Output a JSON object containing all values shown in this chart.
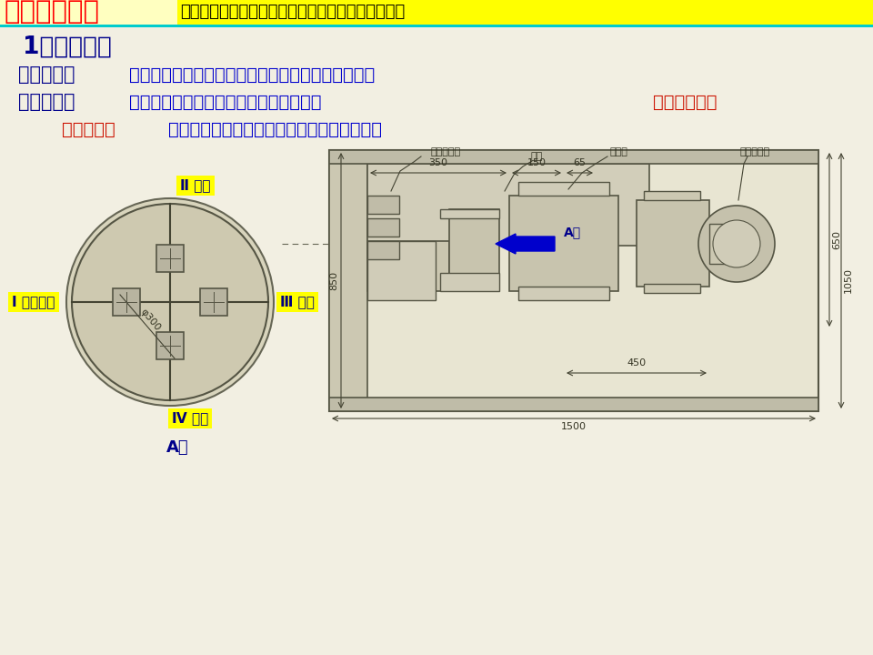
{
  "bg_color": "#f2efe2",
  "header_bg_left": "#ffffc0",
  "header_text_red": "#ff0000",
  "title_red": "二、设计题目",
  "title_colon": "：",
  "title_yellow_text": "专用机床的刀具进给机构和工作台转位机构的设计",
  "section_title": "1、题目简介",
  "line1_bold": "机床构成：",
  "line1_content": "主轴箱进给机构、工作台转位与定位、主传动系统。",
  "line2_bold": "工作原理：",
  "line2_content_blue": "主轴箱往返一次，在四个工位上同时进行",
  "line2_content_red": "装卸、钻孔、",
  "line3_red": "扩孔、铰孔",
  "line3_blue": "工作，工作台每转位一次完成一个工件加工。",
  "label_II": "Ⅱ 钻孔",
  "label_I": "Ⅰ 装卸工件",
  "label_III": "Ⅲ 扩孔",
  "label_IV": "Ⅳ 铰孔",
  "label_A_left": "A向",
  "label_A_right": "A向",
  "dim_350": "350",
  "dim_150": "150",
  "dim_65": "65",
  "dim_850": "850",
  "dim_450": "450",
  "dim_1050": "1050",
  "dim_650": "650",
  "dim_1500": "1500",
  "dim_phi300": "φ300",
  "label_hzgt": "回转工作台",
  "label_gj": "工件",
  "label_zzx": "主轴箱",
  "label_sydd": "专用电动机",
  "blue_color": "#0000cd",
  "red_color": "#cc1100",
  "dark_blue": "#00008b",
  "drawing_color": "#555544",
  "arrow_blue": "#0000cc",
  "cyan_color": "#00cccc"
}
